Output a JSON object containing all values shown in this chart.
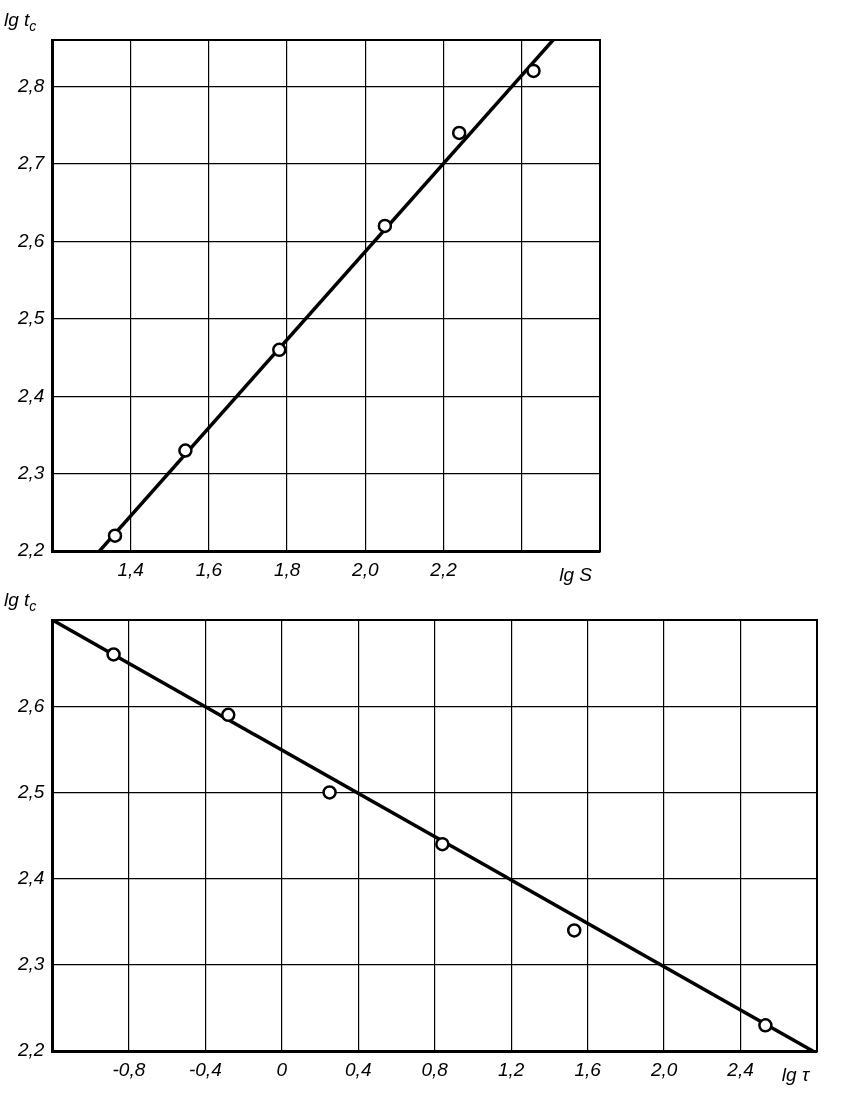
{
  "chart_data": [
    {
      "type": "scatter",
      "xlabel": "lg S",
      "ylabel": "lg t$_{c}$",
      "grid": true,
      "legend": false,
      "marker": "circle",
      "line_style": "solid",
      "xlim": [
        1.2,
        2.6
      ],
      "ylim": [
        2.2,
        2.86
      ],
      "xticks": [
        {
          "value": 1.4,
          "label": "1,4"
        },
        {
          "value": 1.6,
          "label": "1,6"
        },
        {
          "value": 1.8,
          "label": "1,8"
        },
        {
          "value": 2.0,
          "label": "2,0"
        },
        {
          "value": 2.2,
          "label": "2,2"
        },
        {
          "value": 2.4,
          "label": null
        }
      ],
      "yticks": [
        {
          "value": 2.2,
          "label": "2,2"
        },
        {
          "value": 2.3,
          "label": "2,3"
        },
        {
          "value": 2.4,
          "label": "2,4"
        },
        {
          "value": 2.5,
          "label": "2,5"
        },
        {
          "value": 2.6,
          "label": "2,6"
        },
        {
          "value": 2.7,
          "label": "2,7"
        },
        {
          "value": 2.8,
          "label": "2,8"
        }
      ],
      "series": [
        {
          "type": "scatter",
          "color": "#000000",
          "x": [
            1.36,
            1.54,
            1.78,
            2.05,
            2.24,
            2.43
          ],
          "values": [
            2.22,
            2.33,
            2.46,
            2.62,
            2.74,
            2.82
          ]
        },
        {
          "type": "line",
          "color": "#000000",
          "marker": "none",
          "x": [
            1.32,
            2.48
          ],
          "values": [
            2.2,
            2.86
          ]
        }
      ]
    },
    {
      "type": "scatter",
      "xlabel": "lg τ",
      "ylabel": "lg t$_{c}$",
      "grid": true,
      "legend": false,
      "marker": "circle",
      "line_style": "solid",
      "xlim": [
        -1.2,
        2.8
      ],
      "ylim": [
        2.2,
        2.7
      ],
      "xticks": [
        {
          "value": -0.8,
          "label": "-0,8"
        },
        {
          "value": -0.4,
          "label": "-0,4"
        },
        0,
        {
          "value": 0.4,
          "label": "0,4"
        },
        {
          "value": 0.8,
          "label": "0,8"
        },
        {
          "value": 1.2,
          "label": "1,2"
        },
        {
          "value": 1.6,
          "label": "1,6"
        },
        {
          "value": 2.0,
          "label": "2,0"
        },
        {
          "value": 2.4,
          "label": "2,4"
        }
      ],
      "yticks": [
        {
          "value": 2.2,
          "label": "2,2"
        },
        {
          "value": 2.3,
          "label": "2,3"
        },
        {
          "value": 2.4,
          "label": "2,4"
        },
        {
          "value": 2.5,
          "label": "2,5"
        },
        {
          "value": 2.6,
          "label": "2,6"
        }
      ],
      "series": [
        {
          "type": "scatter",
          "color": "#000000",
          "x": [
            -0.88,
            -0.28,
            0.25,
            0.84,
            1.53,
            2.53
          ],
          "values": [
            2.66,
            2.59,
            2.5,
            2.44,
            2.34,
            2.23
          ]
        },
        {
          "type": "line",
          "color": "#000000",
          "marker": "none",
          "x": [
            -1.2,
            2.78
          ],
          "values": [
            2.7,
            2.2
          ]
        }
      ]
    }
  ]
}
